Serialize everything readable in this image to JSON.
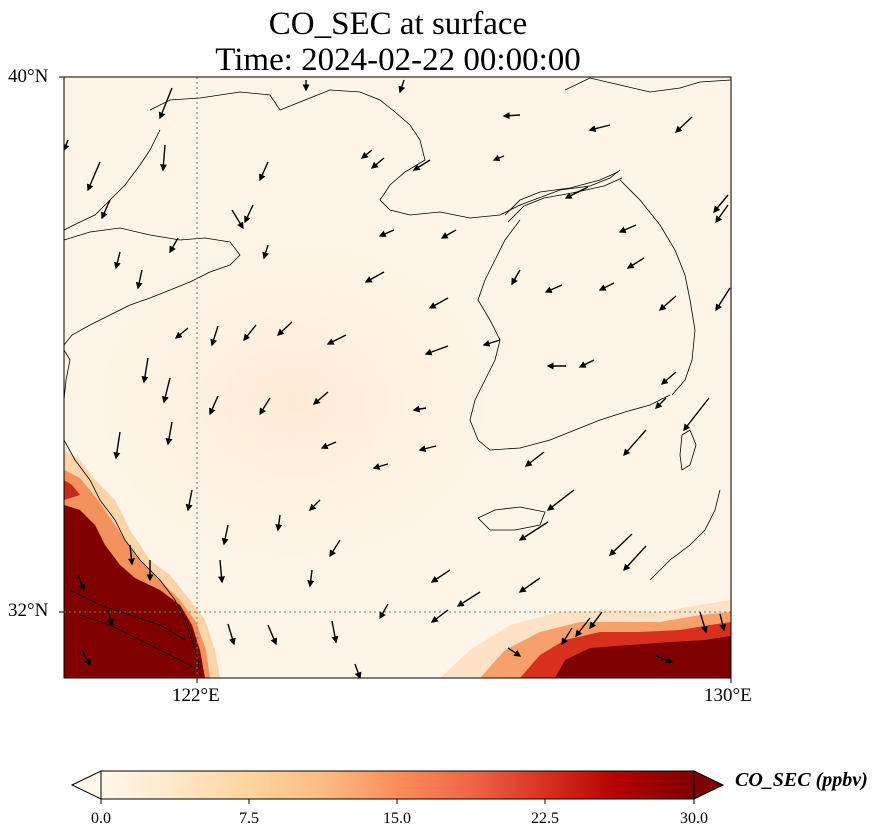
{
  "title": {
    "line1": "CO_SEC at surface",
    "line2": "Time: 2024-02-22 00:00:00"
  },
  "axes": {
    "lat_labels": [
      "40°N",
      "32°N"
    ],
    "lon_labels": [
      "122°E",
      "130°E"
    ],
    "lon_range": [
      120,
      130
    ],
    "lat_range": [
      31,
      40
    ],
    "gridlines": "dotted at 122°E and 32°N"
  },
  "colorbar": {
    "label": "CO_SEC (ppbv)",
    "ticks": [
      "0.0",
      "7.5",
      "15.0",
      "22.5",
      "30.0"
    ],
    "range": [
      0,
      30
    ],
    "extend": "both",
    "colormap": "OrRd",
    "colors": [
      "#fff7ec",
      "#fee8c8",
      "#fdd49e",
      "#fdbb84",
      "#fc8d59",
      "#ef6548",
      "#d7301f",
      "#b30000",
      "#7f0000"
    ]
  },
  "map_colors": {
    "background": "#fef5e8",
    "high": "#7f0000",
    "coastline": "#000000"
  },
  "icons": {
    "wind": "wind-vector-arrow"
  }
}
